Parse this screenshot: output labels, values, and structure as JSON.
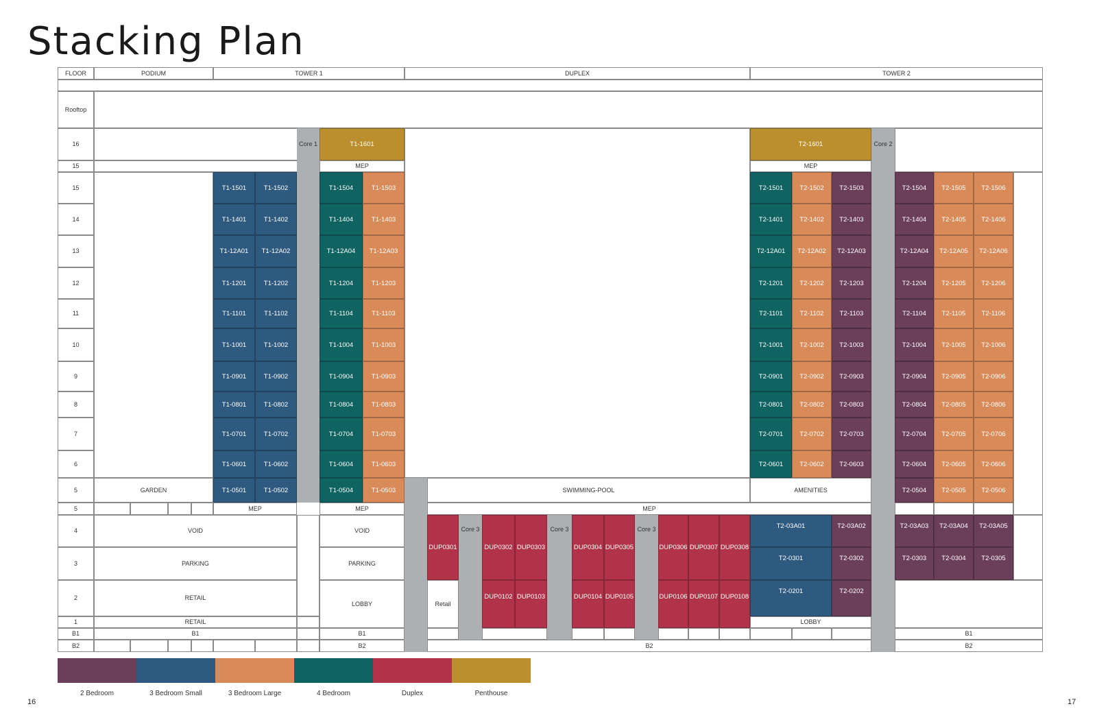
{
  "title": "Stacking Plan",
  "page_left": "16",
  "page_right": "17",
  "colors": {
    "2 Bedroom": "#6b3f5a",
    "3 Bedroom Small": "#2f5a80",
    "3 Bedroom Large": "#d88a58",
    "4 Bedroom": "#0f6360",
    "Duplex": "#b0334a",
    "Penthouse": "#bb8f2e",
    "core": "#adb0b3"
  },
  "header": {
    "floor": "FLOOR",
    "podium": "PODIUM",
    "tower1": "TOWER 1",
    "duplex": "DUPLEX",
    "tower2": "TOWER 2"
  },
  "floor_labels": {
    "rooftop": "Rooftop",
    "f16": "16",
    "f15mep": "15",
    "f15": "15",
    "f14": "14",
    "f13": "13",
    "f12": "12",
    "f11": "11",
    "f10": "10",
    "f9": "9",
    "f8": "8",
    "f7": "7",
    "f6": "6",
    "f5": "5",
    "f5mep": "5",
    "f4": "4",
    "f3": "3",
    "f2": "2",
    "f1": "1",
    "b1": "B1",
    "b2": "B2"
  },
  "labels": {
    "core1": "Core 1",
    "core2": "Core 2",
    "core3": "Core 3",
    "mep": "MEP",
    "garden": "GARDEN",
    "swimming_pool": "SWIMMING-POOL",
    "amenities": "AMENITIES",
    "void": "VOID",
    "parking": "PARKING",
    "retail_caps": "RETAIL",
    "retail": "Retail",
    "lobby": "LOBBY",
    "b1": "B1",
    "b2": "B2"
  },
  "penthouses": [
    {
      "id": "T1-1601",
      "type": "Penthouse"
    },
    {
      "id": "T2-1601",
      "type": "Penthouse"
    }
  ],
  "tower1_floors": [
    {
      "floor": "15",
      "units": [
        "T1-1501",
        "T1-1502",
        "T1-1504",
        "T1-1503"
      ]
    },
    {
      "floor": "14",
      "units": [
        "T1-1401",
        "T1-1402",
        "T1-1404",
        "T1-1403"
      ]
    },
    {
      "floor": "13",
      "units": [
        "T1-12A01",
        "T1-12A02",
        "T1-12A04",
        "T1-12A03"
      ]
    },
    {
      "floor": "12",
      "units": [
        "T1-1201",
        "T1-1202",
        "T1-1204",
        "T1-1203"
      ]
    },
    {
      "floor": "11",
      "units": [
        "T1-1101",
        "T1-1102",
        "T1-1104",
        "T1-1103"
      ]
    },
    {
      "floor": "10",
      "units": [
        "T1-1001",
        "T1-1002",
        "T1-1004",
        "T1-1003"
      ]
    },
    {
      "floor": "9",
      "units": [
        "T1-0901",
        "T1-0902",
        "T1-0904",
        "T1-0903"
      ]
    },
    {
      "floor": "8",
      "units": [
        "T1-0801",
        "T1-0802",
        "T1-0804",
        "T1-0803"
      ]
    },
    {
      "floor": "7",
      "units": [
        "T1-0701",
        "T1-0702",
        "T1-0704",
        "T1-0703"
      ]
    },
    {
      "floor": "6",
      "units": [
        "T1-0601",
        "T1-0602",
        "T1-0604",
        "T1-0603"
      ]
    },
    {
      "floor": "5",
      "units": [
        "T1-0501",
        "T1-0502",
        "T1-0504",
        "T1-0503"
      ]
    }
  ],
  "tower1_types": [
    "3 Bedroom Small",
    "3 Bedroom Small",
    "4 Bedroom",
    "3 Bedroom Large"
  ],
  "tower2_floors": [
    {
      "floor": "15",
      "units": [
        "T2-1501",
        "T2-1502",
        "T2-1503",
        "T2-1504",
        "T2-1505",
        "T2-1506"
      ]
    },
    {
      "floor": "14",
      "units": [
        "T2-1401",
        "T2-1402",
        "T2-1403",
        "T2-1404",
        "T2-1405",
        "T2-1406"
      ]
    },
    {
      "floor": "13",
      "units": [
        "T2-12A01",
        "T2-12A02",
        "T2-12A03",
        "T2-12A04",
        "T2-12A05",
        "T2-12A06"
      ]
    },
    {
      "floor": "12",
      "units": [
        "T2-1201",
        "T2-1202",
        "T2-1203",
        "T2-1204",
        "T2-1205",
        "T2-1206"
      ]
    },
    {
      "floor": "11",
      "units": [
        "T2-1101",
        "T2-1102",
        "T2-1103",
        "T2-1104",
        "T2-1105",
        "T2-1106"
      ]
    },
    {
      "floor": "10",
      "units": [
        "T2-1001",
        "T2-1002",
        "T2-1003",
        "T2-1004",
        "T2-1005",
        "T2-1006"
      ]
    },
    {
      "floor": "9",
      "units": [
        "T2-0901",
        "T2-0902",
        "T2-0903",
        "T2-0904",
        "T2-0905",
        "T2-0906"
      ]
    },
    {
      "floor": "8",
      "units": [
        "T2-0801",
        "T2-0802",
        "T2-0803",
        "T2-0804",
        "T2-0805",
        "T2-0806"
      ]
    },
    {
      "floor": "7",
      "units": [
        "T2-0701",
        "T2-0702",
        "T2-0703",
        "T2-0704",
        "T2-0705",
        "T2-0706"
      ]
    },
    {
      "floor": "6",
      "units": [
        "T2-0601",
        "T2-0602",
        "T2-0603",
        "T2-0604",
        "T2-0605",
        "T2-0606"
      ]
    }
  ],
  "tower2_types": [
    "4 Bedroom",
    "3 Bedroom Large",
    "2 Bedroom",
    "2 Bedroom",
    "3 Bedroom Large",
    "3 Bedroom Large"
  ],
  "tower2_floor5": [
    "T2-0504",
    "T2-0505",
    "T2-0506"
  ],
  "tower2_floor5_types": [
    "2 Bedroom",
    "3 Bedroom Large",
    "3 Bedroom Large"
  ],
  "tower2_low_left": [
    {
      "id": "T2-03A01",
      "type": "3 Bedroom Small"
    },
    {
      "id": "T2-03A02",
      "type": "2 Bedroom"
    },
    {
      "id": "T2-0301",
      "type": "3 Bedroom Small"
    },
    {
      "id": "T2-0302",
      "type": "2 Bedroom"
    },
    {
      "id": "T2-0201",
      "type": "3 Bedroom Small"
    },
    {
      "id": "T2-0202",
      "type": "2 Bedroom"
    }
  ],
  "tower2_low_right": [
    {
      "id": "T2-03A03",
      "type": "2 Bedroom"
    },
    {
      "id": "T2-03A04",
      "type": "2 Bedroom"
    },
    {
      "id": "T2-03A05",
      "type": "2 Bedroom"
    },
    {
      "id": "T2-0303",
      "type": "2 Bedroom"
    },
    {
      "id": "T2-0304",
      "type": "2 Bedroom"
    },
    {
      "id": "T2-0305",
      "type": "2 Bedroom"
    }
  ],
  "duplex_units": {
    "dup0301": "DUP0301",
    "upper": [
      "DUP0302",
      "DUP0303",
      "DUP0304",
      "DUP0305",
      "DUP0306",
      "DUP0307",
      "DUP0308"
    ],
    "lower": [
      "DUP0102",
      "DUP0103",
      "DUP0104",
      "DUP0105",
      "DUP0106",
      "DUP0107",
      "DUP0108"
    ]
  },
  "legend": [
    {
      "label": "2 Bedroom",
      "type": "2 Bedroom"
    },
    {
      "label": "3 Bedroom Small",
      "type": "3 Bedroom Small"
    },
    {
      "label": "3 Bedroom Large",
      "type": "3 Bedroom Large"
    },
    {
      "label": "4 Bedroom",
      "type": "4 Bedroom"
    },
    {
      "label": "Duplex",
      "type": "Duplex"
    },
    {
      "label": "Penthouse",
      "type": "Penthouse"
    }
  ]
}
